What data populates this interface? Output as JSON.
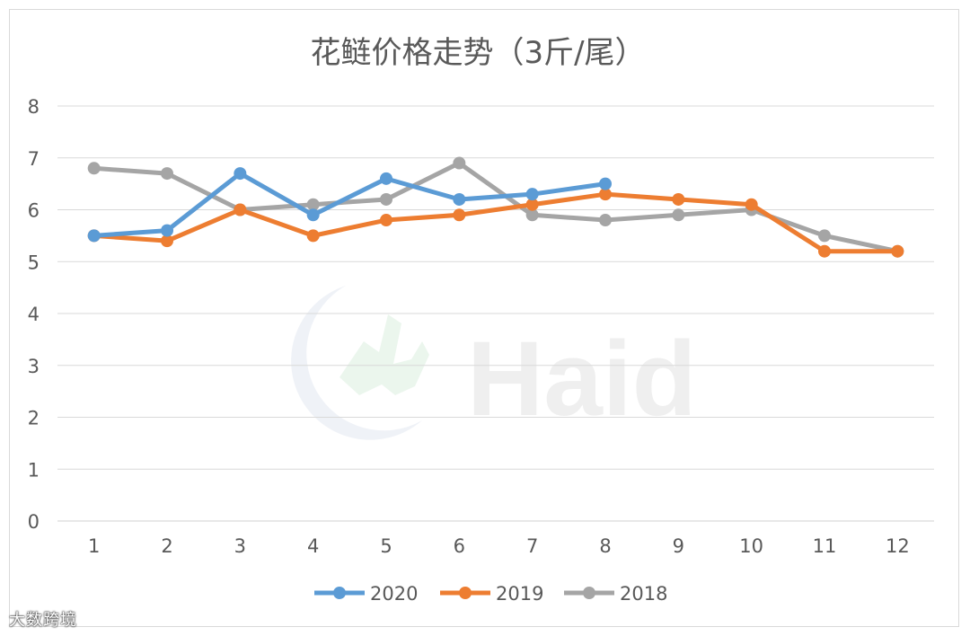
{
  "chart_data": {
    "type": "line",
    "title": "花鲢价格走势（3斤/尾）",
    "xlabel": "",
    "ylabel": "",
    "x": [
      1,
      2,
      3,
      4,
      5,
      6,
      7,
      8,
      9,
      10,
      11,
      12
    ],
    "ylim": [
      0,
      8
    ],
    "yticks": [
      0,
      1,
      2,
      3,
      4,
      5,
      6,
      7,
      8
    ],
    "grid": true,
    "legend": "bottom",
    "series": [
      {
        "name": "2020",
        "color": "#5b9bd5",
        "values": [
          5.5,
          5.6,
          6.7,
          5.9,
          6.6,
          6.2,
          6.3,
          6.5,
          null,
          null,
          null,
          null
        ]
      },
      {
        "name": "2019",
        "color": "#ed7d31",
        "values": [
          5.5,
          5.4,
          6.0,
          5.5,
          5.8,
          5.9,
          6.1,
          6.3,
          6.2,
          6.1,
          5.2,
          5.2
        ]
      },
      {
        "name": "2018",
        "color": "#a5a5a5",
        "values": [
          6.8,
          6.7,
          6.0,
          6.1,
          6.2,
          6.9,
          5.9,
          5.8,
          5.9,
          6.0,
          5.5,
          5.2
        ]
      }
    ]
  },
  "watermark": {
    "text": "Haid"
  },
  "corner_mark": {
    "text": "大数跨境"
  }
}
